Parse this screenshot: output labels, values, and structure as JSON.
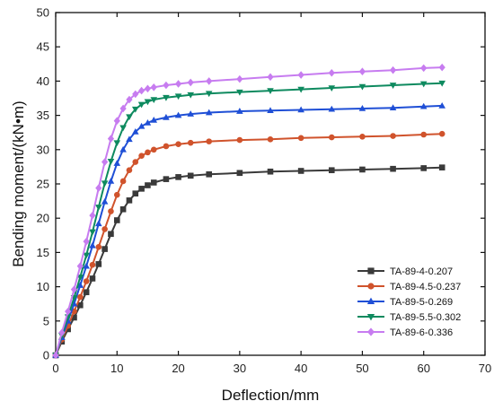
{
  "chart_data": {
    "type": "line",
    "xlabel": "Deflection/mm",
    "ylabel": "Bending moment/(kN•m)",
    "xlim": [
      0,
      70
    ],
    "ylim": [
      0,
      50
    ],
    "xticks": [
      0,
      10,
      20,
      30,
      40,
      50,
      60,
      70
    ],
    "yticks": [
      0,
      5,
      10,
      15,
      20,
      25,
      30,
      35,
      40,
      45,
      50
    ],
    "grid": false,
    "legend_position": "bottom-right",
    "series": [
      {
        "name": "TA-89-4-0.207",
        "color": "#3a3a3a",
        "marker": "square",
        "x": [
          0,
          1,
          2,
          3,
          4,
          5,
          6,
          7,
          8,
          9,
          10,
          11,
          12,
          13,
          14,
          15,
          16,
          18,
          20,
          22,
          25,
          30,
          35,
          40,
          45,
          50,
          55,
          60,
          63
        ],
        "y": [
          0,
          2,
          3.8,
          5.5,
          7.3,
          9.2,
          11.2,
          13.3,
          15.5,
          17.7,
          19.7,
          21.3,
          22.6,
          23.6,
          24.3,
          24.8,
          25.2,
          25.7,
          26.0,
          26.2,
          26.4,
          26.6,
          26.8,
          26.9,
          27.0,
          27.1,
          27.2,
          27.3,
          27.4
        ]
      },
      {
        "name": "TA-89-4.5-0.237",
        "color": "#d0532c",
        "marker": "circle",
        "x": [
          0,
          1,
          2,
          3,
          4,
          5,
          6,
          7,
          8,
          9,
          10,
          11,
          12,
          13,
          14,
          15,
          16,
          18,
          20,
          22,
          25,
          30,
          35,
          40,
          45,
          50,
          55,
          60,
          63
        ],
        "y": [
          0,
          2.3,
          4.3,
          6.4,
          8.5,
          10.8,
          13.2,
          15.8,
          18.4,
          21.0,
          23.4,
          25.4,
          27.0,
          28.2,
          29.1,
          29.6,
          30.0,
          30.5,
          30.8,
          31.0,
          31.2,
          31.4,
          31.5,
          31.7,
          31.8,
          31.9,
          32.0,
          32.2,
          32.3
        ]
      },
      {
        "name": "TA-89-5-0.269",
        "color": "#1f4fd6",
        "marker": "triangle-up",
        "x": [
          0,
          1,
          2,
          3,
          4,
          5,
          6,
          7,
          8,
          9,
          10,
          11,
          12,
          13,
          14,
          15,
          16,
          18,
          20,
          22,
          25,
          30,
          35,
          40,
          45,
          50,
          55,
          60,
          63
        ],
        "y": [
          0,
          2.6,
          5.0,
          7.5,
          10.2,
          13.0,
          16.0,
          19.2,
          22.4,
          25.4,
          28.0,
          30.0,
          31.5,
          32.6,
          33.4,
          33.9,
          34.3,
          34.7,
          35.0,
          35.2,
          35.4,
          35.6,
          35.7,
          35.8,
          35.9,
          36.0,
          36.1,
          36.3,
          36.4
        ]
      },
      {
        "name": "TA-89-5.5-0.302",
        "color": "#0e8a5f",
        "marker": "triangle-down",
        "x": [
          0,
          1,
          2,
          3,
          4,
          5,
          6,
          7,
          8,
          9,
          10,
          11,
          12,
          13,
          14,
          15,
          16,
          18,
          20,
          22,
          25,
          30,
          35,
          40,
          45,
          50,
          55,
          60,
          63
        ],
        "y": [
          0,
          2.9,
          5.6,
          8.4,
          11.4,
          14.6,
          18.0,
          21.6,
          25.1,
          28.3,
          31.0,
          33.2,
          34.8,
          35.9,
          36.6,
          37.0,
          37.3,
          37.6,
          37.8,
          38.0,
          38.2,
          38.4,
          38.6,
          38.8,
          39.0,
          39.2,
          39.4,
          39.6,
          39.7
        ]
      },
      {
        "name": "TA-89-6-0.336",
        "color": "#c77cf0",
        "marker": "diamond",
        "x": [
          0,
          1,
          2,
          3,
          4,
          5,
          6,
          7,
          8,
          9,
          10,
          11,
          12,
          13,
          14,
          15,
          16,
          18,
          20,
          22,
          25,
          30,
          35,
          40,
          45,
          50,
          55,
          60,
          63
        ],
        "y": [
          0,
          3.3,
          6.4,
          9.6,
          13.0,
          16.6,
          20.4,
          24.4,
          28.2,
          31.6,
          34.2,
          36.0,
          37.3,
          38.1,
          38.6,
          38.9,
          39.1,
          39.4,
          39.6,
          39.8,
          40.0,
          40.3,
          40.6,
          40.9,
          41.2,
          41.4,
          41.6,
          41.9,
          42.0
        ]
      }
    ]
  }
}
